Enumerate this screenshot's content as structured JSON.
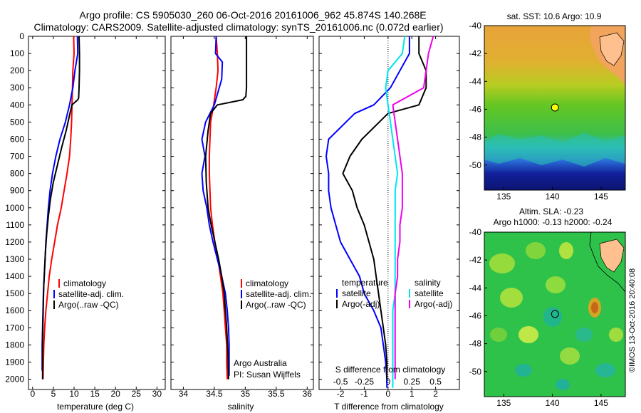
{
  "header": {
    "line1": "Argo profile: CS 5905030_260 06-Oct-2016 20161006_962 45.874S 140.268E",
    "line2": "Climatology: CARS2009. Satellite-adjusted climatology: synTS_20161006.nc (0.072d earlier)"
  },
  "side_credit": "©IMOS 13-Oct-2016 20:40:08",
  "colors": {
    "climatology": "#ff0000",
    "satellite": "#0000ff",
    "argo": "#000000",
    "sal_satellite": "#00e5ee",
    "sal_argo": "#ee00ee"
  },
  "chart_data": [
    {
      "type": "line",
      "id": "temperature",
      "xlabel": "temperature (deg C)",
      "xlim": [
        -1,
        32
      ],
      "ylim": [
        2060,
        0
      ],
      "xticks": [
        0,
        5,
        10,
        15,
        20,
        25,
        30
      ],
      "yticks": [
        0,
        100,
        200,
        300,
        400,
        500,
        600,
        700,
        800,
        900,
        1000,
        1100,
        1200,
        1300,
        1400,
        1500,
        1600,
        1700,
        1800,
        1900,
        2000
      ],
      "legend": [
        "climatology",
        "satellite-adj. clim.",
        "Argo(..raw -QC)"
      ],
      "legend_position": "lower-center",
      "series": [
        {
          "name": "climatology",
          "color_key": "climatology",
          "x": [
            9.9,
            10.0,
            9.7,
            9.6,
            9.5,
            9.4,
            9.2,
            8.9,
            8.3,
            7.6,
            6.9,
            6.0,
            5.3,
            4.6,
            4.0,
            3.6,
            3.2,
            2.9,
            2.7,
            2.6,
            2.5
          ],
          "y": [
            0,
            100,
            200,
            300,
            400,
            500,
            600,
            700,
            800,
            900,
            1000,
            1100,
            1200,
            1300,
            1400,
            1500,
            1600,
            1700,
            1800,
            1900,
            2000
          ]
        },
        {
          "name": "satellite-adj. clim.",
          "color_key": "satellite",
          "x": [
            10.8,
            10.9,
            10.2,
            9.7,
            8.9,
            7.9,
            6.6,
            5.6,
            4.8,
            4.2,
            3.8,
            3.5,
            3.2,
            3.0,
            2.8,
            2.6,
            2.5,
            2.4,
            2.3,
            2.3
          ],
          "y": [
            0,
            100,
            200,
            300,
            400,
            500,
            600,
            700,
            800,
            900,
            1000,
            1100,
            1200,
            1300,
            1400,
            1500,
            1600,
            1700,
            1800,
            1950
          ]
        },
        {
          "name": "Argo(..raw -QC)",
          "color_key": "argo",
          "x": [
            11.2,
            11.3,
            11.3,
            11.2,
            11.1,
            10.9,
            9.5,
            9.0,
            8.1,
            7.0,
            6.0,
            5.0,
            4.3,
            3.8,
            3.4,
            3.1,
            2.9,
            2.7,
            2.6,
            2.5,
            2.4,
            2.4,
            2.4
          ],
          "y": [
            0,
            100,
            200,
            300,
            360,
            370,
            400,
            450,
            550,
            650,
            750,
            850,
            950,
            1050,
            1150,
            1250,
            1350,
            1450,
            1550,
            1650,
            1750,
            1850,
            2000
          ]
        }
      ]
    },
    {
      "type": "line",
      "id": "salinity",
      "xlabel": "salinity",
      "xlim": [
        33.8,
        36.1
      ],
      "ylim": [
        2060,
        0
      ],
      "xticks": [
        34,
        34.5,
        35,
        35.5,
        36
      ],
      "tick_labels": [
        "34",
        "34.5",
        "35",
        "35.5",
        "36"
      ],
      "legend": [
        "climatology",
        "satellite-adj. clim.",
        "Argo(..raw -QC)"
      ],
      "legend_position": "lower-right",
      "note_lines": [
        "Argo Australia",
        "PI: Susan Wijffels"
      ],
      "series": [
        {
          "name": "climatology",
          "color_key": "climatology",
          "x": [
            34.53,
            34.55,
            34.56,
            34.53,
            34.49,
            34.44,
            34.43,
            34.42,
            34.42,
            34.43,
            34.44,
            34.47,
            34.51,
            34.56,
            34.6,
            34.64,
            34.66,
            34.68,
            34.7,
            34.7,
            34.71
          ],
          "y": [
            0,
            100,
            200,
            300,
            400,
            500,
            600,
            700,
            800,
            900,
            1000,
            1100,
            1200,
            1300,
            1400,
            1500,
            1600,
            1700,
            1800,
            1900,
            2000
          ]
        },
        {
          "name": "satellite-adj. clim.",
          "color_key": "satellite",
          "x": [
            34.53,
            34.52,
            34.63,
            34.62,
            34.5,
            34.36,
            34.3,
            34.35,
            34.3,
            34.32,
            34.38,
            34.42,
            34.48,
            34.55,
            34.62,
            34.68,
            34.71,
            34.73,
            34.74,
            34.74
          ],
          "y": [
            0,
            100,
            150,
            250,
            400,
            500,
            600,
            700,
            800,
            900,
            1000,
            1100,
            1200,
            1300,
            1400,
            1500,
            1600,
            1700,
            1800,
            1980
          ]
        },
        {
          "name": "Argo(..raw -QC)",
          "color_key": "argo",
          "x": [
            35.02,
            35.02,
            35.02,
            35.02,
            35.01,
            34.96,
            34.55,
            34.44,
            34.4,
            34.36,
            34.37,
            34.4,
            34.45,
            34.51,
            34.57,
            34.62,
            34.66,
            34.68,
            34.7,
            34.72,
            34.73
          ],
          "y": [
            0,
            100,
            200,
            300,
            350,
            370,
            400,
            450,
            550,
            700,
            850,
            1000,
            1100,
            1200,
            1300,
            1400,
            1500,
            1600,
            1700,
            1850,
            2000
          ]
        }
      ]
    },
    {
      "type": "line",
      "id": "differences",
      "xlabel": "T difference from climatology",
      "top_label": "S difference from climatology",
      "xlim": [
        -2.9,
        3.0
      ],
      "ylim": [
        2060,
        0
      ],
      "xticks": [
        -2,
        -1,
        0,
        1,
        2
      ],
      "tick_labels_T": [
        "-2",
        "-1",
        "0",
        "1",
        "2"
      ],
      "tick_labels_S": [
        "-0.5",
        "-0.25",
        "0",
        "0.25",
        "0.5"
      ],
      "tick_labels_S_positions": [
        -2,
        -1,
        0,
        1,
        2
      ],
      "zero_line": "dotted",
      "legend_temperature": {
        "title": "temperature",
        "items": [
          "satellite",
          "Argo(-adj)"
        ]
      },
      "legend_salinity": {
        "title": "salinity",
        "items": [
          "satellite",
          "Argo(-adj)"
        ]
      },
      "series": [
        {
          "name": "temperature satellite",
          "color_key": "satellite",
          "x": [
            0.9,
            0.9,
            0.5,
            0.1,
            -0.6,
            -1.4,
            -2.5,
            -2.6,
            -2.5,
            -2.5,
            -2.4,
            -2.2,
            -2.0,
            -1.6,
            -1.2,
            -1.0,
            -0.6,
            -0.3,
            -0.2,
            -0.1,
            -0.05,
            -0.05
          ],
          "y": [
            0,
            100,
            200,
            300,
            400,
            450,
            600,
            700,
            800,
            900,
            1000,
            1100,
            1200,
            1300,
            1400,
            1500,
            1600,
            1700,
            1800,
            1900,
            2000,
            2050
          ]
        },
        {
          "name": "temperature Argo(-adj)",
          "color_key": "argo",
          "x": [
            1.3,
            1.3,
            1.6,
            1.6,
            1.3,
            0.0,
            -1.1,
            -1.6,
            -1.9,
            -1.5,
            -1.3,
            -1.0,
            -0.8,
            -0.6,
            -0.5,
            -0.4,
            -0.3,
            -0.2,
            -0.1,
            -0.05,
            -0.05
          ],
          "y": [
            0,
            100,
            200,
            300,
            400,
            450,
            600,
            700,
            800,
            900,
            1000,
            1100,
            1200,
            1300,
            1400,
            1500,
            1600,
            1700,
            1800,
            1900,
            2000
          ]
        },
        {
          "name": "salinity satellite",
          "color_key": "sal_satellite",
          "x": [
            0.7,
            0.6,
            0.0,
            -0.1,
            0.0,
            0.1,
            0.2,
            0.3,
            0.4,
            0.3,
            0.3,
            0.3,
            0.3,
            0.3,
            0.3,
            0.3,
            0.2,
            0.2,
            0.2,
            0.2,
            0.2,
            0.2
          ],
          "y": [
            0,
            100,
            200,
            300,
            400,
            500,
            600,
            700,
            800,
            900,
            1000,
            1100,
            1200,
            1300,
            1400,
            1500,
            1600,
            1700,
            1800,
            1900,
            2000,
            2050
          ]
        },
        {
          "name": "salinity Argo(-adj)",
          "color_key": "sal_argo",
          "x": [
            1.9,
            1.7,
            1.6,
            1.5,
            0.2,
            0.3,
            0.4,
            0.5,
            0.6,
            0.6,
            0.6,
            0.5,
            0.5,
            0.4,
            0.4,
            0.3,
            0.3,
            0.3,
            0.3,
            0.3
          ],
          "y": [
            0,
            100,
            200,
            300,
            400,
            500,
            600,
            700,
            800,
            900,
            1000,
            1100,
            1200,
            1300,
            1400,
            1500,
            1600,
            1700,
            1800,
            2000
          ]
        }
      ]
    },
    {
      "type": "heatmap",
      "id": "sst_map",
      "title": "sat. SST: 10.6  Argo: 10.9",
      "xlim": [
        133,
        147.5
      ],
      "ylim": [
        -51.8,
        -40
      ],
      "xticks": [
        135,
        140,
        145
      ],
      "yticks": [
        -40,
        -42,
        -44,
        -46,
        -48,
        -50
      ],
      "marker": {
        "lon": 140.268,
        "lat": -45.874,
        "fill": "#ffff00"
      }
    },
    {
      "type": "heatmap",
      "id": "sla_map",
      "title_lines": [
        "Altim. SLA: -0.23",
        "Argo h1000: -0.13  h2000: -0.24"
      ],
      "xlim": [
        133,
        147.5
      ],
      "ylim": [
        -51.8,
        -40
      ],
      "xticks": [
        135,
        140,
        145
      ],
      "yticks": [
        -40,
        -42,
        -44,
        -46,
        -48,
        -50
      ],
      "marker": {
        "lon": 140.268,
        "lat": -45.874,
        "fill": "#33cc33"
      }
    }
  ]
}
